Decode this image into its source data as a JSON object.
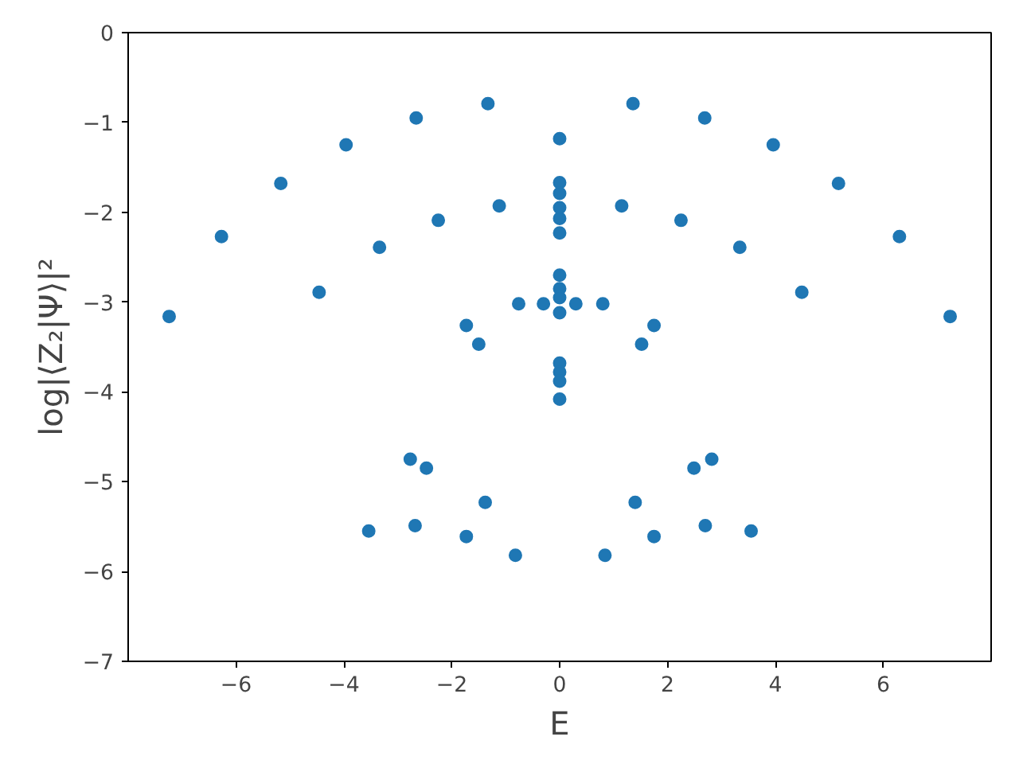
{
  "chart_data": {
    "type": "scatter",
    "xlabel": "E",
    "ylabel": "log|⟨Z₂|Ψ⟩|²",
    "xlim": [
      -8,
      8
    ],
    "ylim": [
      -7,
      0
    ],
    "xticks": [
      -6,
      -4,
      -2,
      0,
      2,
      4,
      6
    ],
    "yticks": [
      -7,
      -6,
      -5,
      -4,
      -3,
      -2,
      -1,
      0
    ],
    "marker": "circle",
    "grid": false,
    "series": [
      {
        "color": "#1f77b4",
        "x": [
          -7.24,
          7.24,
          -6.27,
          6.3,
          -5.17,
          5.17,
          -4.46,
          4.49,
          -3.96,
          3.96,
          -3.34,
          3.34,
          -2.66,
          2.69,
          -2.25,
          2.25,
          -1.33,
          1.36,
          -1.12,
          1.15,
          0,
          0,
          0,
          0,
          0,
          0,
          0,
          0,
          0,
          0,
          -0.76,
          -0.3,
          0.3,
          0.8,
          -1.73,
          -1.5,
          1.75,
          1.52,
          0,
          0,
          0,
          0,
          -2.77,
          -2.47,
          -1.38,
          -3.54,
          -2.68,
          -1.73,
          -0.82,
          0.84,
          1.75,
          1.4,
          2.7,
          2.49,
          2.82,
          3.55
        ],
        "values": [
          -3.16,
          -3.16,
          -2.27,
          -2.27,
          -1.68,
          -1.68,
          -2.89,
          -2.89,
          -1.25,
          -1.25,
          -2.39,
          -2.39,
          -0.95,
          -0.95,
          -2.09,
          -2.09,
          -0.79,
          -0.79,
          -1.93,
          -1.93,
          -1.18,
          -1.67,
          -1.79,
          -1.95,
          -2.07,
          -2.23,
          -2.7,
          -2.85,
          -2.95,
          -3.12,
          -3.02,
          -3.02,
          -3.02,
          -3.02,
          -3.26,
          -3.47,
          -3.26,
          -3.47,
          -3.68,
          -3.78,
          -3.88,
          -4.08,
          -4.75,
          -4.85,
          -5.23,
          -5.55,
          -5.49,
          -5.61,
          -5.82,
          -5.82,
          -5.61,
          -5.23,
          -5.49,
          -4.85,
          -4.75,
          -5.55
        ]
      }
    ]
  }
}
